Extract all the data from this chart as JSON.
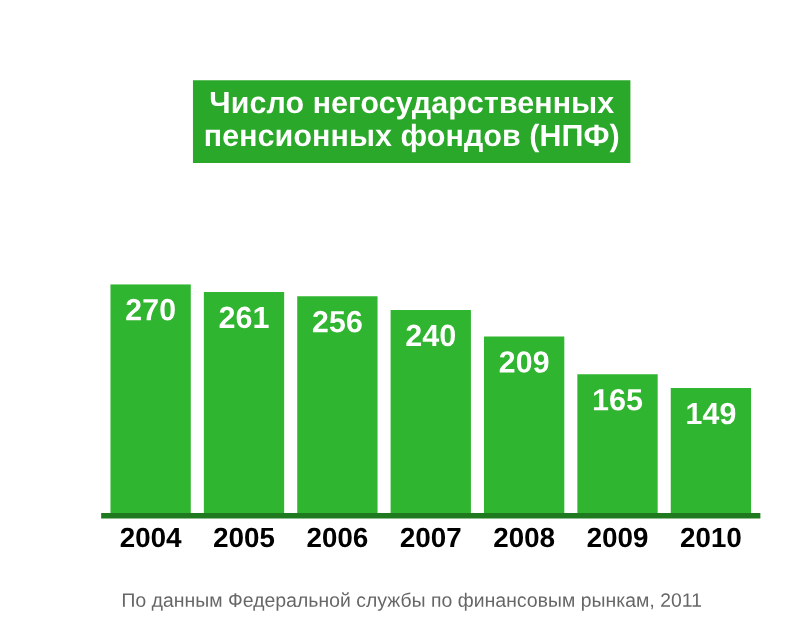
{
  "chart_data": {
    "type": "bar",
    "title": "Число негосударственных\nпенсионных фондов (НПФ)",
    "categories": [
      "2004",
      "2005",
      "2006",
      "2007",
      "2008",
      "2009",
      "2010"
    ],
    "values": [
      270,
      261,
      256,
      240,
      209,
      165,
      149
    ],
    "color": "#2fb52f",
    "data_labels": true,
    "grid": false,
    "annotations": [
      "По данным Федеральной службы по финансовым рынкам, 2011"
    ]
  }
}
